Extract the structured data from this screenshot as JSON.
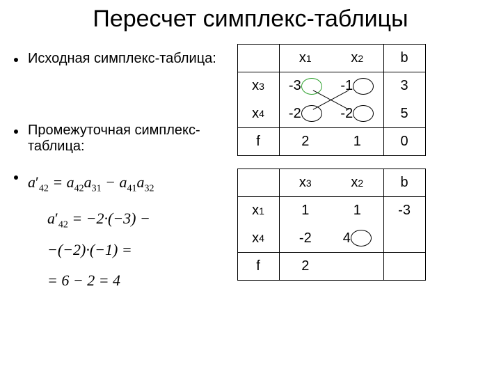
{
  "title": "Пересчет симплекс-таблицы",
  "left": {
    "bullet1": "Исходная симплекс-таблица:",
    "bullet2": "Промежуточная симплекс-таблица:",
    "formula_main_html": "a<span class='prime'>′</span><span class='sub'>42</span> = a<span class='sub'>42</span>a<span class='sub'>31</span> − a<span class='sub'>41</span>a<span class='sub'>32</span>",
    "formula_line2_html": "a<span class='prime'>′</span><span class='sub'>42</span> = −2·(−3) −",
    "formula_line3_html": "−(−2)·(−1) =",
    "formula_line4_html": "= 6 − 2 = 4"
  },
  "table1": {
    "colheads": [
      "x<sub>1</sub>",
      "x<sub>2</sub>",
      "b"
    ],
    "rowlabels": [
      "x<sub>3</sub>",
      "x<sub>4</sub>",
      "f"
    ],
    "body": [
      [
        "-3",
        "-1"
      ],
      [
        "-2",
        "-2"
      ],
      [
        "2",
        "1"
      ]
    ],
    "b": [
      "3",
      "5",
      "0"
    ],
    "circled": {
      "green": [
        [
          0,
          0
        ]
      ],
      "black": [
        [
          0,
          1
        ],
        [
          1,
          0
        ],
        [
          1,
          1
        ]
      ]
    },
    "cross": true
  },
  "table2": {
    "colheads": [
      "x<sub>3</sub>",
      "x<sub>2</sub>",
      "b"
    ],
    "rowlabels": [
      "x<sub>1</sub>",
      "x<sub>4</sub>",
      "f"
    ],
    "body": [
      [
        "1",
        "1"
      ],
      [
        "-2",
        "4"
      ],
      [
        "2",
        ""
      ]
    ],
    "b": [
      "-3",
      "",
      ""
    ],
    "circled": {
      "black": [
        [
          1,
          1
        ]
      ]
    }
  }
}
